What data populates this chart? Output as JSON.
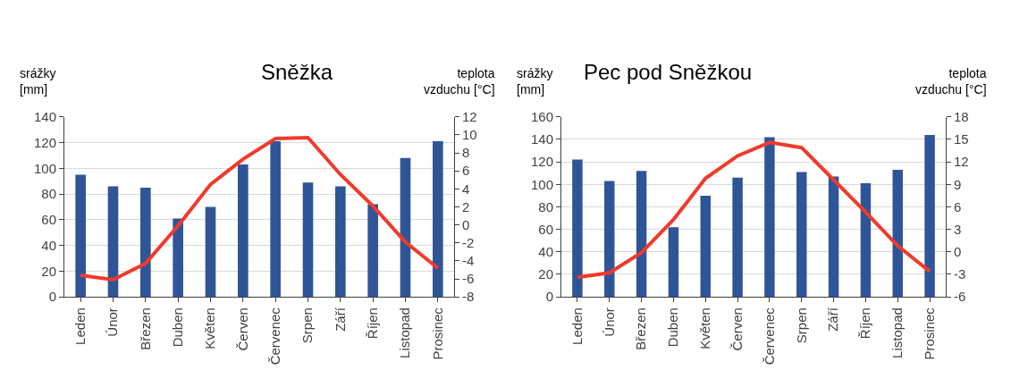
{
  "chart_data": [
    {
      "type": "bar",
      "title": "Sněžka",
      "ylabel": "srážky\n[mm]",
      "y2label": "teplota\nvzduchu [°C]",
      "categories": [
        "Leden",
        "Únor",
        "Březen",
        "Duben",
        "Květen",
        "Červen",
        "Červenec",
        "Srpen",
        "Září",
        "Říjen",
        "Listopad",
        "Prosinec"
      ],
      "series": [
        {
          "color": "#2f5597",
          "values": [
            95,
            86,
            85,
            61,
            70,
            103,
            121,
            89,
            86,
            72,
            108,
            121
          ]
        },
        {
          "type": "line",
          "axis": "y2",
          "color": "#f03a2c",
          "values": [
            -5.6,
            -6.1,
            -4.3,
            -0.1,
            4.5,
            7.3,
            9.6,
            9.7,
            5.6,
            2.1,
            -1.9,
            -4.8
          ]
        }
      ],
      "ylim": [
        0,
        140
      ],
      "yticks": [
        0,
        20,
        40,
        60,
        80,
        100,
        120,
        140
      ],
      "y2lim": [
        -8,
        12
      ],
      "y2ticks": [
        -8,
        -6,
        -4,
        -2,
        0,
        2,
        4,
        6,
        8,
        10,
        12
      ],
      "grid": "y",
      "marker": "none",
      "line_style": "solid"
    },
    {
      "type": "bar",
      "title": "Pec pod Sněžkou",
      "ylabel": "srážky\n[mm]",
      "y2label": "teplota\nvzduchu [°C]",
      "categories": [
        "Leden",
        "Únor",
        "Březen",
        "Duben",
        "Květen",
        "Červen",
        "Červenec",
        "Srpen",
        "Září",
        "Říjen",
        "Listopad",
        "Prosinec"
      ],
      "series": [
        {
          "color": "#2f5597",
          "values": [
            122,
            103,
            112,
            62,
            90,
            106,
            142,
            111,
            107,
            101,
            113,
            144
          ]
        },
        {
          "type": "line",
          "axis": "y2",
          "color": "#f03a2c",
          "values": [
            -3.4,
            -2.8,
            -0.1,
            4.3,
            9.8,
            12.8,
            14.6,
            13.9,
            9.6,
            5.3,
            0.8,
            -2.6
          ]
        }
      ],
      "ylim": [
        0,
        160
      ],
      "yticks": [
        0,
        20,
        40,
        60,
        80,
        100,
        120,
        140,
        160
      ],
      "y2lim": [
        -6,
        18
      ],
      "y2ticks": [
        -6,
        -3,
        0,
        3,
        6,
        9,
        12,
        15,
        18
      ],
      "grid": "y",
      "marker": "none",
      "line_style": "solid"
    }
  ]
}
